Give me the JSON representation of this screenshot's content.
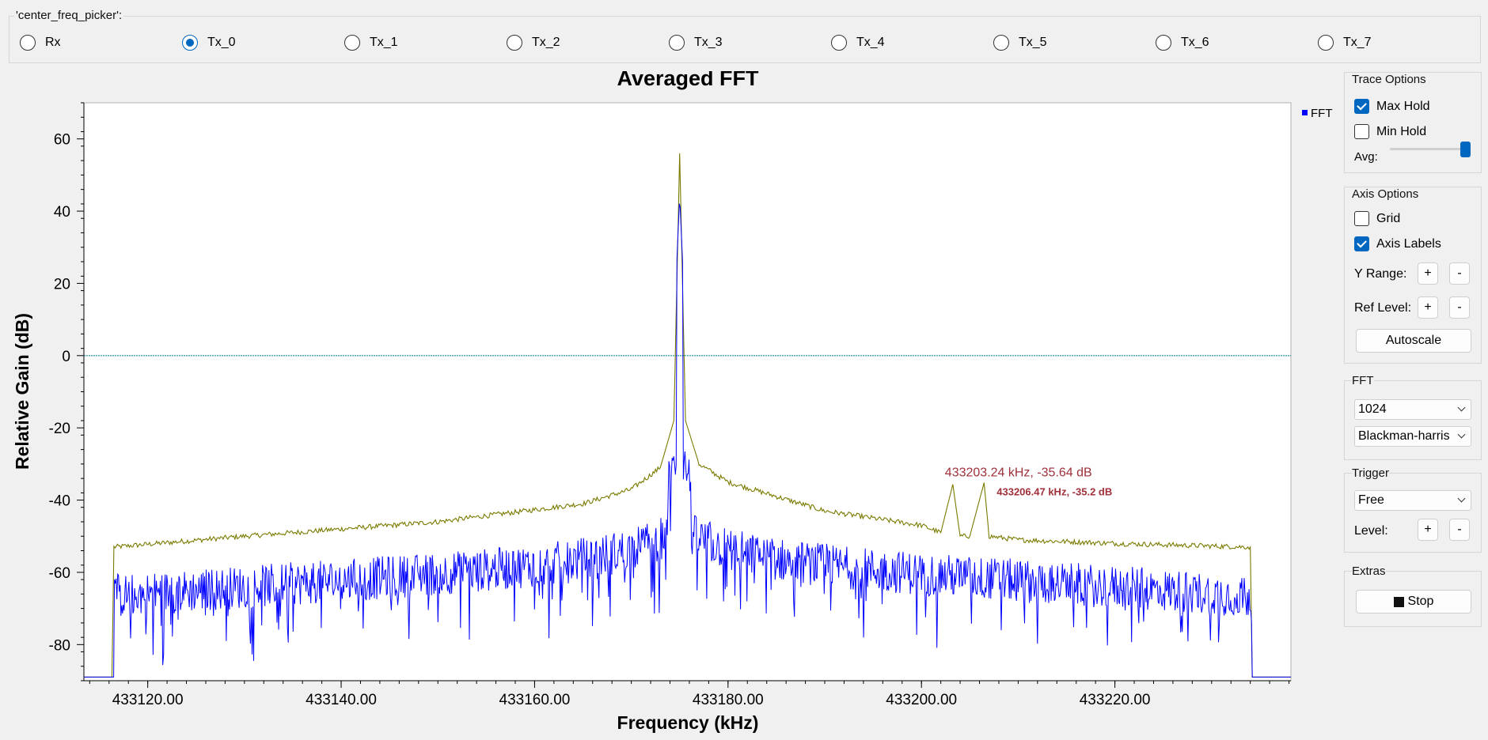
{
  "picker": {
    "title": "'center_freq_picker':",
    "options": [
      "Rx",
      "Tx_0",
      "Tx_1",
      "Tx_2",
      "Tx_3",
      "Tx_4",
      "Tx_5",
      "Tx_6",
      "Tx_7"
    ],
    "selected": "Tx_0"
  },
  "chart_data": {
    "type": "line",
    "title": "Averaged FFT",
    "xlabel": "Frequency (kHz)",
    "ylabel": "Relative Gain (dB)",
    "xlim": [
      433113.4,
      433238.2
    ],
    "ylim": [
      -90,
      70
    ],
    "x_ticks": [
      "433120.00",
      "433140.00",
      "433160.00",
      "433180.00",
      "433200.00",
      "433220.00"
    ],
    "y_ticks": [
      "60",
      "40",
      "20",
      "0",
      "-20",
      "-40",
      "-60",
      "-80"
    ],
    "legend": {
      "entries": [
        "FFT"
      ],
      "placement": "top-right"
    },
    "grid": false,
    "series": [
      {
        "name": "FFT",
        "color": "#0000ff",
        "peak": {
          "x": 433175.0,
          "y": 44
        },
        "passband_start": 433116.5,
        "passband_end": 433234.2,
        "floor": -89
      },
      {
        "role": "max-hold",
        "color": "#7a7a00",
        "x": [
          433113.4,
          433116.3,
          433116.5,
          433130,
          433150,
          433165,
          433170,
          433173,
          433174.4,
          433175.0,
          433175.6,
          433177,
          433180,
          433190,
          433200,
          433202,
          433203.24,
          433204,
          433205,
          433206.47,
          433207,
          433210,
          433220,
          433234.0,
          433234.2,
          433238.2
        ],
        "y": [
          -89,
          -89,
          -53,
          -50,
          -46,
          -41,
          -37,
          -31,
          -18,
          56,
          -18,
          -30,
          -35,
          -43,
          -47,
          -49,
          -35.64,
          -50,
          -50,
          -35.2,
          -50,
          -51,
          -52,
          -53,
          -89,
          -89
        ]
      }
    ],
    "reference_line": {
      "y": 0,
      "color": "#1a8fa0"
    },
    "annotations": [
      {
        "text": "433203.24 kHz, -35.64 dB",
        "x": 433203.24,
        "y": -35.64,
        "bold": false
      },
      {
        "text": "433206.47 kHz, -35.2 dB",
        "x": 433206.47,
        "y": -35.2,
        "bold": true
      }
    ]
  },
  "trace_options": {
    "title": "Trace Options",
    "max_hold": {
      "label": "Max Hold",
      "checked": true
    },
    "min_hold": {
      "label": "Min Hold",
      "checked": false
    },
    "avg_label": "Avg:",
    "avg_level": 1.0
  },
  "axis_options": {
    "title": "Axis Options",
    "grid": {
      "label": "Grid",
      "checked": false
    },
    "axis_labels": {
      "label": "Axis Labels",
      "checked": true
    },
    "y_range_label": "Y Range:",
    "ref_level_label": "Ref Level:",
    "plus": "+",
    "minus": "-",
    "autoscale": "Autoscale"
  },
  "fft": {
    "title": "FFT",
    "size": "1024",
    "window": "Blackman-harris"
  },
  "trigger": {
    "title": "Trigger",
    "mode": "Free",
    "level_label": "Level:",
    "plus": "+",
    "minus": "-"
  },
  "extras": {
    "title": "Extras",
    "stop": "Stop"
  }
}
